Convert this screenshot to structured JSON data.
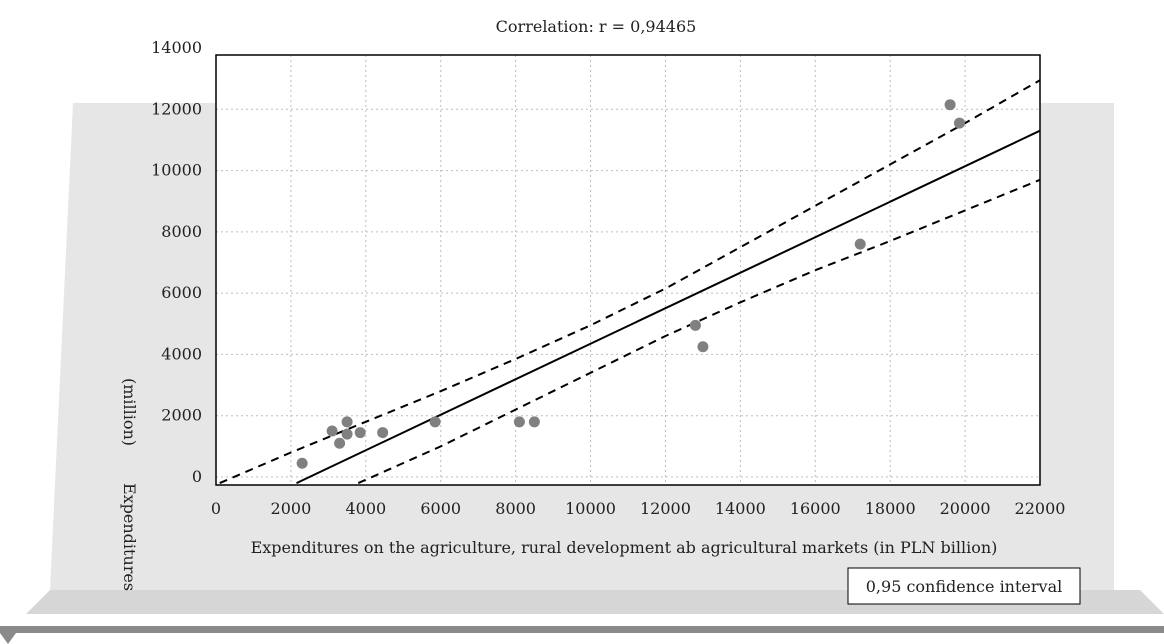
{
  "chart_data": {
    "type": "scatter",
    "title": "Correlation: r = 0,94465",
    "xlabel": "Expenditures on the agriculture, rural development ab agricultural markets (in PLN billion)",
    "ylabel_top": "(million)",
    "ylabel_bottom": "Expenditures",
    "xlim": [
      0,
      22000
    ],
    "ylim": [
      -200,
      14000
    ],
    "x_ticks": [
      "0",
      "2000",
      "4000",
      "6000",
      "8000",
      "10000",
      "12000",
      "14000",
      "16000",
      "18000",
      "20000",
      "22000"
    ],
    "y_ticks": [
      {
        "value": 0,
        "label": "0"
      },
      {
        "value": 2000,
        "label": "2000"
      },
      {
        "value": 4000,
        "label": "4000"
      },
      {
        "value": 6000,
        "label": "6000"
      },
      {
        "value": 8000,
        "label": "8000"
      },
      {
        "value": 10000,
        "label": "10000"
      },
      {
        "value": 12000,
        "label": "12000"
      },
      {
        "value": 14000,
        "label": "14000"
      }
    ],
    "grid": true,
    "points": [
      {
        "x": 2300,
        "y": 450
      },
      {
        "x": 3100,
        "y": 1500
      },
      {
        "x": 3300,
        "y": 1100
      },
      {
        "x": 3500,
        "y": 1800
      },
      {
        "x": 3500,
        "y": 1400
      },
      {
        "x": 3850,
        "y": 1450
      },
      {
        "x": 4450,
        "y": 1450
      },
      {
        "x": 5850,
        "y": 1800
      },
      {
        "x": 8100,
        "y": 1800
      },
      {
        "x": 8500,
        "y": 1800
      },
      {
        "x": 12800,
        "y": 4950
      },
      {
        "x": 13000,
        "y": 4250
      },
      {
        "x": 17200,
        "y": 7600
      },
      {
        "x": 19600,
        "y": 12150
      },
      {
        "x": 19850,
        "y": 11550
      }
    ],
    "regression_line": [
      [
        2150,
        -200
      ],
      [
        22000,
        11300
      ]
    ],
    "confidence_upper": [
      [
        100,
        -200
      ],
      [
        2000,
        800
      ],
      [
        4000,
        1800
      ],
      [
        6000,
        2800
      ],
      [
        8000,
        3850
      ],
      [
        10000,
        4950
      ],
      [
        12000,
        6150
      ],
      [
        14000,
        7500
      ],
      [
        16000,
        8850
      ],
      [
        18000,
        10200
      ],
      [
        20000,
        11550
      ],
      [
        22000,
        12950
      ]
    ],
    "confidence_lower": [
      [
        3800,
        -200
      ],
      [
        6000,
        1000
      ],
      [
        8000,
        2200
      ],
      [
        10000,
        3400
      ],
      [
        12000,
        4600
      ],
      [
        14000,
        5700
      ],
      [
        16000,
        6750
      ],
      [
        18000,
        7700
      ],
      [
        20000,
        8700
      ],
      [
        22000,
        9700
      ]
    ],
    "legend": {
      "label": "0,95 confidence interval",
      "position": "bottom-right"
    },
    "colors": {
      "point": "#808080",
      "line": "#000000",
      "grid": "#bdbdbd",
      "background_panel": "#e6e6e6",
      "floor": "#d6d6d6",
      "floor_strip": "#8a8a8a"
    }
  }
}
